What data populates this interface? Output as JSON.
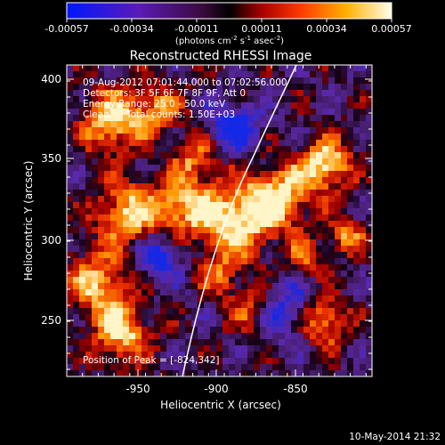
{
  "colorbar": {
    "tick_labels": [
      "-0.00057",
      "-0.00034",
      "-0.00011",
      "0.00011",
      "0.00034",
      "0.00057"
    ],
    "unit_label": "(photons cm",
    "unit_exp1": "-2",
    "unit_mid": " s",
    "unit_exp2": "-1",
    "unit_end": " asec",
    "unit_exp3": "-2",
    "unit_close": ")"
  },
  "title": "Reconstructed RHESSI Image",
  "info": {
    "time_range": "09-Aug-2012 07:01:44.000 to 07:02:56.000",
    "detectors": "Detectors: 3F 5F 6F 7F 8F 9F, Att 0",
    "energy_range": "Energy Range: 25.0 - 50.0 keV",
    "algorithm": "Clean",
    "total_counts": "Total counts: 1.50E+03"
  },
  "peak_text": "Position of Peak = [-824,342]",
  "axes": {
    "xlabel": "Heliocentric X (arcsec)",
    "ylabel": "Heliocentric Y (arcsec)",
    "x_ticks": [
      "-950",
      "-900",
      "-850"
    ],
    "y_ticks": [
      "400",
      "350",
      "300",
      "250"
    ]
  },
  "footer_date": "10-May-2014 21:32",
  "colors": {
    "background": "#000000",
    "foreground": "#ffffff",
    "limb_line": "#ffffff"
  }
}
